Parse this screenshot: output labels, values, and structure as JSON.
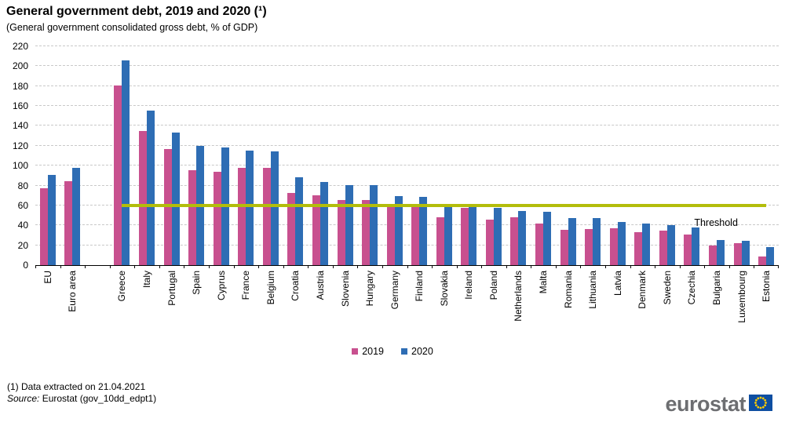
{
  "header": {
    "title": "General government debt, 2019 and 2020 (¹)",
    "subtitle": "(General  government  consolidated gross debt, % of GDP)"
  },
  "footer": {
    "footnote": "(1) Data extracted on 21.04.2021",
    "source_label": "Source:",
    "source_text": " Eurostat (gov_10dd_edpt1)",
    "logo_text": "eurostat"
  },
  "legend": {
    "items": [
      {
        "label": "2019",
        "color": "#C8508F"
      },
      {
        "label": "2020",
        "color": "#2E6DB4"
      }
    ]
  },
  "colors": {
    "series_2019": "#C8508F",
    "series_2020": "#2E6DB4",
    "threshold": "#B3BD0B",
    "gridline": "#C8C8C8",
    "eu_flag_blue": "#0E4EA1",
    "eu_flag_stars": "#FFCC00",
    "logo_gray": "#6D6E71"
  },
  "chart_data": {
    "type": "bar",
    "title": "General government debt, 2019 and 2020 (¹)",
    "subtitle": "(General government consolidated gross debt, % of GDP)",
    "ylabel": "% of GDP",
    "xlabel": "",
    "ylim": [
      0,
      220
    ],
    "ytick_interval": 20,
    "grid": "horizontal-dashed",
    "legend_position": "bottom-center",
    "gap_after_index": 1,
    "categories": [
      "EU",
      "Euro area",
      "Greece",
      "Italy",
      "Portugal",
      "Spain",
      "Cyprus",
      "France",
      "Belgium",
      "Croatia",
      "Austria",
      "Slovenia",
      "Hungary",
      "Germany",
      "Finland",
      "Slovakia",
      "Ireland",
      "Poland",
      "Netherlands",
      "Malta",
      "Romania",
      "Lithuania",
      "Latvia",
      "Denmark",
      "Sweden",
      "Czechia",
      "Bulgaria",
      "Luxembourg",
      "Estonia"
    ],
    "series": [
      {
        "name": "2019",
        "color": "#C8508F",
        "values": [
          77.5,
          84.0,
          180.5,
          134.5,
          116.5,
          95.5,
          94.0,
          97.5,
          98.0,
          72.5,
          70.5,
          65.5,
          65.5,
          59.5,
          59.5,
          48.0,
          57.5,
          45.5,
          48.5,
          42.0,
          35.5,
          36.0,
          37.0,
          33.5,
          35.0,
          30.5,
          20.0,
          22.0,
          8.5
        ]
      },
      {
        "name": "2020",
        "color": "#2E6DB4",
        "values": [
          90.5,
          98.0,
          205.5,
          155.5,
          133.5,
          120.0,
          118.0,
          115.5,
          114.0,
          88.5,
          83.5,
          80.5,
          80.5,
          69.5,
          69.0,
          59.5,
          59.0,
          57.5,
          54.5,
          54.0,
          47.5,
          47.0,
          43.5,
          42.0,
          40.0,
          38.0,
          25.0,
          24.5,
          18.0
        ]
      }
    ],
    "threshold": {
      "label": "Threshold",
      "value": 60,
      "color": "#B3BD0B"
    }
  }
}
